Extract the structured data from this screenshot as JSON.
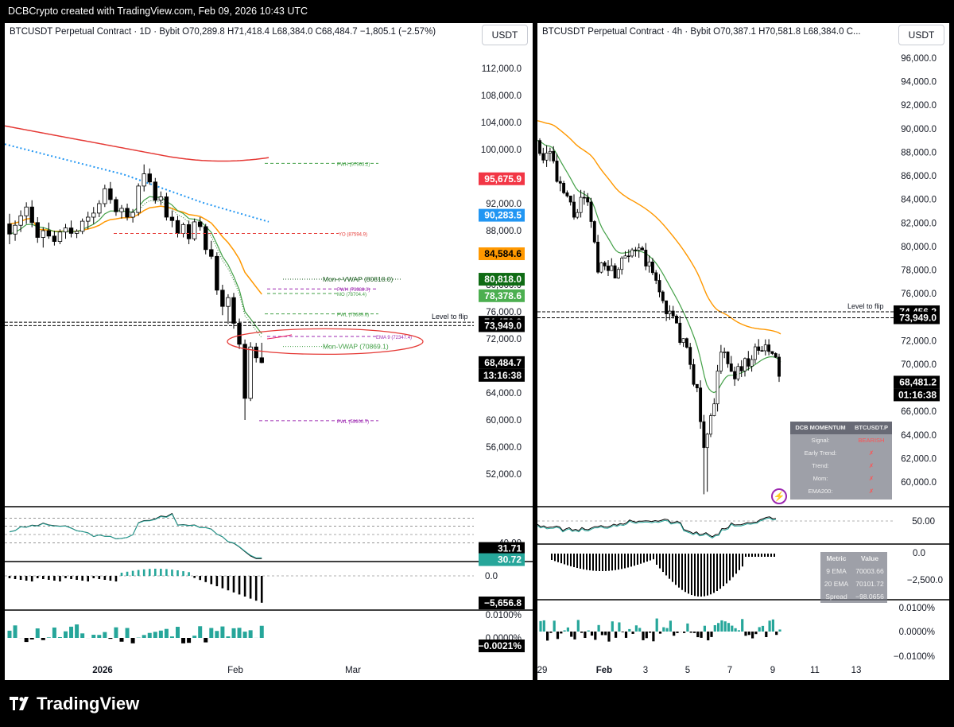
{
  "header": {
    "caption": "DCBCrypto created with TradingView.com, Feb 09, 2026 10:43 UTC"
  },
  "footer": {
    "brand": "TradingView"
  },
  "left": {
    "legend": "BTCUSDT Perpetual Contract · 1D · Bybit  O70,289.8  H71,418.4  L68,384.0  C68,484.7  −1,805.1 (−2.57%)",
    "currency": "USDT",
    "price_ticks": [
      "112,000.0",
      "108,000.0",
      "104,000.0",
      "100,000.0",
      "92,000.0",
      "88,000.0",
      "80,000.0",
      "76,000.0",
      "72,000.0",
      "64,000.0",
      "60,000.0",
      "56,000.0",
      "52,000.0"
    ],
    "price_tick_values": [
      112000,
      108000,
      104000,
      100000,
      92000,
      88000,
      80000,
      76000,
      72000,
      64000,
      60000,
      56000,
      52000
    ],
    "price_badges": [
      {
        "text": "95,675.9",
        "value": 95675.9,
        "color": "#f23645",
        "fg": "#ffffff"
      },
      {
        "text": "90,283.5",
        "value": 90283.5,
        "color": "#2196f3",
        "fg": "#ffffff"
      },
      {
        "text": "84,584.6",
        "value": 84584.6,
        "color": "#ff9800",
        "fg": "#000000"
      },
      {
        "text": "80,818.0",
        "value": 80818.0,
        "color": "#0f6b14",
        "fg": "#ffffff"
      },
      {
        "text": "78,378.6",
        "value": 78378.6,
        "color": "#4caf50",
        "fg": "#ffffff"
      },
      {
        "text": "74,456.2",
        "value": 74456.2,
        "color": "#000000",
        "fg": "#ffffff"
      },
      {
        "text": "73,949.0",
        "value": 73949.0,
        "color": "#000000",
        "fg": "#ffffff"
      },
      {
        "text": "68,484.7",
        "value": 68484.7,
        "color": "#000000",
        "fg": "#ffffff"
      }
    ],
    "countdown": "13:16:38",
    "annotations": {
      "pwh": "PWH (97963.2)",
      "yo": "YO (87594.9)",
      "monr_vwap": "Mon-r-VWAP (80818.0)",
      "pwh2": "PWH (79388.0)",
      "mo": "MO (78704.4)",
      "pwl": "PWL (75689.6)",
      "level_to_flip": "Level to flip",
      "ema9": "EMA 9 (72347.4)",
      "mon_vwap": "Mon-VWAP (70869.1)",
      "pwl2": "PWL (59900.7)"
    },
    "rsi": {
      "tick": "40.00",
      "badges": [
        {
          "text": "31.71",
          "color": "#000000"
        },
        {
          "text": "30.72",
          "color": "#26a69a"
        }
      ]
    },
    "macd": {
      "tick": "0.0",
      "badge": "−5,656.8"
    },
    "funding": {
      "ticks": [
        "0.0100%",
        "0.0000%"
      ],
      "badge": "−0.0021%"
    },
    "time_labels": [
      "2026",
      "Feb",
      "Mar"
    ]
  },
  "right": {
    "legend": "BTCUSDT Perpetual Contract · 4h · Bybit  O70,387.1  H70,581.8  L68,384.0  C...",
    "currency": "USDT",
    "price_ticks": [
      "96,000.0",
      "94,000.0",
      "92,000.0",
      "90,000.0",
      "88,000.0",
      "86,000.0",
      "84,000.0",
      "82,000.0",
      "80,000.0",
      "78,000.0",
      "76,000.0",
      "72,000.0",
      "70,000.0",
      "66,000.0",
      "64,000.0",
      "62,000.0",
      "60,000.0"
    ],
    "price_tick_values": [
      96000,
      94000,
      92000,
      90000,
      88000,
      86000,
      84000,
      82000,
      80000,
      78000,
      76000,
      72000,
      70000,
      66000,
      64000,
      62000,
      60000
    ],
    "price_badges": [
      {
        "text": "74,456.2",
        "value": 74456.2,
        "color": "#000000",
        "fg": "#ffffff"
      },
      {
        "text": "73,949.0",
        "value": 73949.0,
        "color": "#000000",
        "fg": "#ffffff"
      },
      {
        "text": "68,481.2",
        "value": 68481.2,
        "color": "#000000",
        "fg": "#ffffff"
      }
    ],
    "countdown": "01:16:38",
    "level_to_flip": "Level to flip",
    "dcb": {
      "title": "DCB MOMENTUM",
      "symbol": "BTCUSDT.P",
      "rows": [
        {
          "k": "Signal:",
          "v": "BEARISH"
        },
        {
          "k": "Early Trend:",
          "v": "✗"
        },
        {
          "k": "Trend:",
          "v": "✗"
        },
        {
          "k": "Mom:",
          "v": "✗"
        },
        {
          "k": "EMA200:",
          "v": "✗"
        }
      ]
    },
    "rsi": {
      "tick": "50.00"
    },
    "macd": {
      "ticks": [
        "0.0",
        "−2,500.0"
      ]
    },
    "ema_table": {
      "headers": [
        "Metric",
        "Value"
      ],
      "rows": [
        {
          "k": "9 EMA",
          "v": "70003.66"
        },
        {
          "k": "20 EMA",
          "v": "70101.72"
        },
        {
          "k": "Spread",
          "v": "−98.0656"
        }
      ]
    },
    "funding": {
      "ticks": [
        "0.0100%",
        "0.0000%",
        "−0.0100%"
      ]
    },
    "time_labels": [
      "29",
      "Feb",
      "3",
      "5",
      "7",
      "9",
      "11",
      "13"
    ]
  },
  "colors": {
    "up": "#ffffff",
    "down": "#000000",
    "ema_green": "#43a047",
    "ema_orange": "#ff9800",
    "ma_red": "#e53935",
    "ma_blue": "#2196f3",
    "teal": "#26a69a"
  },
  "chart_data": [
    {
      "type": "candlestick",
      "title": "BTCUSDT Perpetual Contract · 1D · Bybit",
      "ylim": [
        48000,
        116000
      ],
      "x": "daily, Dec 2025 – Feb 09 2026",
      "candles_approx": [
        [
          89000,
          90500,
          86000,
          87500
        ],
        [
          87500,
          89500,
          86500,
          88800
        ],
        [
          88800,
          91000,
          87800,
          90200
        ],
        [
          90200,
          92200,
          89000,
          91500
        ],
        [
          91500,
          92500,
          88500,
          89200
        ],
        [
          89200,
          90000,
          86200,
          87000
        ],
        [
          87000,
          88500,
          85500,
          88000
        ],
        [
          88000,
          89200,
          86800,
          87200
        ],
        [
          87200,
          88000,
          85800,
          86400
        ],
        [
          86400,
          88200,
          86000,
          87800
        ],
        [
          87800,
          89000,
          86800,
          88400
        ],
        [
          88400,
          89500,
          87000,
          87600
        ],
        [
          87600,
          88200,
          86900,
          87900
        ],
        [
          87900,
          89800,
          87500,
          89400
        ],
        [
          89400,
          90800,
          88200,
          90000
        ],
        [
          90000,
          91500,
          89000,
          90600
        ],
        [
          90600,
          92500,
          90000,
          92000
        ],
        [
          92000,
          94800,
          91500,
          94200
        ],
        [
          94200,
          95200,
          92000,
          92600
        ],
        [
          92600,
          93000,
          90200,
          90800
        ],
        [
          90800,
          91800,
          89800,
          91300
        ],
        [
          91300,
          92000,
          89500,
          90000
        ],
        [
          90000,
          91200,
          89200,
          90700
        ],
        [
          90700,
          95000,
          90200,
          94600
        ],
        [
          94600,
          97800,
          93800,
          96400
        ],
        [
          96400,
          97200,
          94800,
          95200
        ],
        [
          95200,
          95800,
          92000,
          92500
        ],
        [
          92500,
          93800,
          91800,
          93000
        ],
        [
          93000,
          93600,
          89500,
          90000
        ],
        [
          90000,
          91000,
          88500,
          89500
        ],
        [
          89500,
          90200,
          87000,
          87600
        ],
        [
          87600,
          89200,
          87000,
          88900
        ],
        [
          88900,
          89500,
          86000,
          86800
        ],
        [
          86800,
          89800,
          86500,
          89300
        ],
        [
          89300,
          90000,
          88000,
          88600
        ],
        [
          88600,
          89000,
          84500,
          85200
        ],
        [
          85200,
          86500,
          83800,
          84200
        ],
        [
          84200,
          84800,
          78500,
          79200
        ],
        [
          79200,
          80000,
          75500,
          76800
        ],
        [
          76800,
          78600,
          74200,
          78100
        ],
        [
          78100,
          78800,
          73500,
          74300
        ],
        [
          74300,
          75000,
          70500,
          71200
        ],
        [
          71200,
          71900,
          60000,
          63200
        ],
        [
          63200,
          71500,
          62800,
          70800
        ],
        [
          70800,
          71400,
          68500,
          69200
        ],
        [
          69200,
          71418,
          68384,
          68485
        ]
      ]
    },
    {
      "type": "candlestick",
      "title": "BTCUSDT Perpetual Contract · 4h · Bybit",
      "ylim": [
        58500,
        97500
      ],
      "x": "4-hour, Jan 29 – Feb 09 2026",
      "candles_approx": "≈70 candles, close path: 89000 → 85000 (Jan 30) → 78000 (Feb 1) → 79500 (Feb 3) → 75000 (Feb 4) → 63000 (Feb 5) → 60000 low → 71000 (Feb 6) → 69500 (Feb 7) → 71500 (Feb 8) → 68481 (Feb 9)"
    }
  ]
}
